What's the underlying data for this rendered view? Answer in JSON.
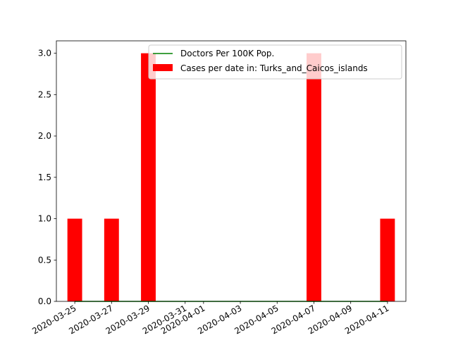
{
  "colors": {
    "bar": "#ff0000",
    "line": "#008000",
    "axis": "#000000",
    "background": "#ffffff"
  },
  "chart_data": {
    "type": "bar",
    "title": "",
    "xlabel": "",
    "ylabel": "",
    "x_axis_type": "date",
    "xlim": [
      "2020-03-24",
      "2020-04-12"
    ],
    "ylim": [
      0,
      3.15
    ],
    "grid": false,
    "legend_placement": "upper-right",
    "x_ticks": [
      "2020-03-25",
      "2020-03-27",
      "2020-03-29",
      "2020-03-31",
      "2020-04-01",
      "2020-04-03",
      "2020-04-05",
      "2020-04-07",
      "2020-04-09",
      "2020-04-11"
    ],
    "y_ticks": [
      "0.0",
      "0.5",
      "1.0",
      "1.5",
      "2.0",
      "2.5",
      "3.0"
    ],
    "series": [
      {
        "name": "Cases per date in: Turks_and_Caicos_islands",
        "type": "bar",
        "dates": [
          "2020-03-25",
          "2020-03-27",
          "2020-03-29",
          "2020-04-07",
          "2020-04-11"
        ],
        "values": [
          1,
          1,
          3,
          3,
          1
        ]
      },
      {
        "name": "Doctors Per 100K Pop.",
        "type": "line",
        "dates": [
          "2020-03-25",
          "2020-04-11"
        ],
        "values": [
          0,
          0
        ]
      }
    ]
  }
}
